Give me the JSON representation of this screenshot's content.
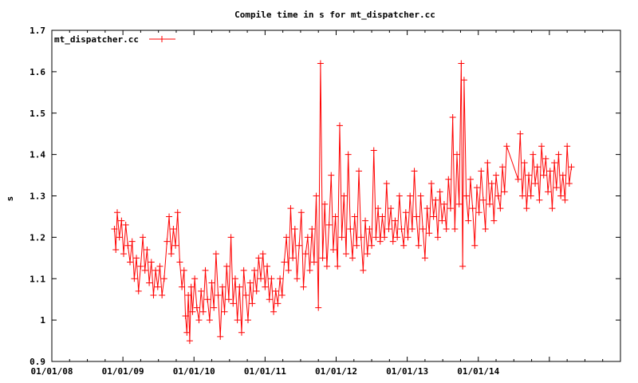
{
  "chart_data": {
    "type": "line",
    "title": "Compile time in s for mt_dispatcher.cc",
    "xlabel": "",
    "ylabel": "s",
    "xlim": [
      2008.0,
      2016.0
    ],
    "ylim": [
      0.9,
      1.7
    ],
    "x_ticks": [
      {
        "value": 2008,
        "label": "01/01/08"
      },
      {
        "value": 2009,
        "label": "01/01/09"
      },
      {
        "value": 2010,
        "label": "01/01/10"
      },
      {
        "value": 2011,
        "label": "01/01/11"
      },
      {
        "value": 2012,
        "label": "01/01/12"
      },
      {
        "value": 2013,
        "label": "01/01/13"
      },
      {
        "value": 2014,
        "label": "01/01/14"
      },
      {
        "value": 2015,
        "label": ""
      }
    ],
    "y_ticks": [
      {
        "value": 0.9,
        "label": "0.9"
      },
      {
        "value": 1.0,
        "label": "1"
      },
      {
        "value": 1.1,
        "label": "1.1"
      },
      {
        "value": 1.2,
        "label": "1.2"
      },
      {
        "value": 1.3,
        "label": "1.3"
      },
      {
        "value": 1.4,
        "label": "1.4"
      },
      {
        "value": 1.5,
        "label": "1.5"
      },
      {
        "value": 1.6,
        "label": "1.6"
      },
      {
        "value": 1.7,
        "label": "1.7"
      }
    ],
    "legend": {
      "position": "top-left",
      "entry": "mt_dispatcher.cc"
    },
    "grid": false,
    "series": [
      {
        "name": "mt_dispatcher.cc",
        "color": "#ff0000",
        "points": [
          [
            2008.88,
            1.22
          ],
          [
            2008.9,
            1.17
          ],
          [
            2008.92,
            1.26
          ],
          [
            2008.95,
            1.2
          ],
          [
            2008.98,
            1.24
          ],
          [
            2009.01,
            1.16
          ],
          [
            2009.04,
            1.23
          ],
          [
            2009.07,
            1.18
          ],
          [
            2009.1,
            1.14
          ],
          [
            2009.13,
            1.19
          ],
          [
            2009.16,
            1.1
          ],
          [
            2009.19,
            1.15
          ],
          [
            2009.22,
            1.07
          ],
          [
            2009.25,
            1.13
          ],
          [
            2009.28,
            1.2
          ],
          [
            2009.31,
            1.12
          ],
          [
            2009.34,
            1.17
          ],
          [
            2009.37,
            1.09
          ],
          [
            2009.4,
            1.14
          ],
          [
            2009.43,
            1.06
          ],
          [
            2009.46,
            1.12
          ],
          [
            2009.49,
            1.08
          ],
          [
            2009.52,
            1.13
          ],
          [
            2009.55,
            1.06
          ],
          [
            2009.58,
            1.1
          ],
          [
            2009.62,
            1.19
          ],
          [
            2009.65,
            1.25
          ],
          [
            2009.68,
            1.16
          ],
          [
            2009.71,
            1.22
          ],
          [
            2009.74,
            1.18
          ],
          [
            2009.77,
            1.26
          ],
          [
            2009.8,
            1.14
          ],
          [
            2009.83,
            1.08
          ],
          [
            2009.86,
            1.12
          ],
          [
            2009.88,
            1.01
          ],
          [
            2009.9,
            0.97
          ],
          [
            2009.92,
            1.06
          ],
          [
            2009.94,
            0.95
          ],
          [
            2009.96,
            1.08
          ],
          [
            2009.98,
            1.02
          ],
          [
            2010.01,
            1.1
          ],
          [
            2010.04,
            1.03
          ],
          [
            2010.07,
            1.0
          ],
          [
            2010.1,
            1.07
          ],
          [
            2010.13,
            1.02
          ],
          [
            2010.16,
            1.12
          ],
          [
            2010.19,
            1.05
          ],
          [
            2010.22,
            1.0
          ],
          [
            2010.25,
            1.09
          ],
          [
            2010.28,
            1.03
          ],
          [
            2010.31,
            1.16
          ],
          [
            2010.34,
            1.06
          ],
          [
            2010.37,
            0.96
          ],
          [
            2010.4,
            1.08
          ],
          [
            2010.43,
            1.02
          ],
          [
            2010.46,
            1.13
          ],
          [
            2010.49,
            1.05
          ],
          [
            2010.52,
            1.2
          ],
          [
            2010.55,
            1.04
          ],
          [
            2010.58,
            1.1
          ],
          [
            2010.61,
            1.0
          ],
          [
            2010.64,
            1.08
          ],
          [
            2010.67,
            0.97
          ],
          [
            2010.7,
            1.12
          ],
          [
            2010.73,
            1.06
          ],
          [
            2010.76,
            1.0
          ],
          [
            2010.79,
            1.09
          ],
          [
            2010.82,
            1.04
          ],
          [
            2010.85,
            1.12
          ],
          [
            2010.88,
            1.07
          ],
          [
            2010.91,
            1.15
          ],
          [
            2010.94,
            1.1
          ],
          [
            2010.97,
            1.16
          ],
          [
            2011.0,
            1.08
          ],
          [
            2011.03,
            1.13
          ],
          [
            2011.06,
            1.05
          ],
          [
            2011.09,
            1.1
          ],
          [
            2011.12,
            1.02
          ],
          [
            2011.15,
            1.07
          ],
          [
            2011.18,
            1.04
          ],
          [
            2011.21,
            1.1
          ],
          [
            2011.24,
            1.06
          ],
          [
            2011.27,
            1.14
          ],
          [
            2011.3,
            1.2
          ],
          [
            2011.33,
            1.12
          ],
          [
            2011.36,
            1.27
          ],
          [
            2011.39,
            1.15
          ],
          [
            2011.42,
            1.22
          ],
          [
            2011.45,
            1.1
          ],
          [
            2011.48,
            1.18
          ],
          [
            2011.51,
            1.26
          ],
          [
            2011.54,
            1.08
          ],
          [
            2011.57,
            1.16
          ],
          [
            2011.6,
            1.2
          ],
          [
            2011.63,
            1.12
          ],
          [
            2011.66,
            1.22
          ],
          [
            2011.69,
            1.14
          ],
          [
            2011.72,
            1.3
          ],
          [
            2011.75,
            1.03
          ],
          [
            2011.78,
            1.62
          ],
          [
            2011.81,
            1.15
          ],
          [
            2011.84,
            1.28
          ],
          [
            2011.87,
            1.13
          ],
          [
            2011.9,
            1.23
          ],
          [
            2011.93,
            1.35
          ],
          [
            2011.96,
            1.17
          ],
          [
            2011.99,
            1.25
          ],
          [
            2012.02,
            1.13
          ],
          [
            2012.05,
            1.47
          ],
          [
            2012.08,
            1.2
          ],
          [
            2012.11,
            1.3
          ],
          [
            2012.14,
            1.16
          ],
          [
            2012.17,
            1.4
          ],
          [
            2012.2,
            1.22
          ],
          [
            2012.23,
            1.15
          ],
          [
            2012.26,
            1.25
          ],
          [
            2012.29,
            1.18
          ],
          [
            2012.32,
            1.36
          ],
          [
            2012.35,
            1.2
          ],
          [
            2012.38,
            1.12
          ],
          [
            2012.41,
            1.24
          ],
          [
            2012.44,
            1.16
          ],
          [
            2012.47,
            1.22
          ],
          [
            2012.5,
            1.18
          ],
          [
            2012.53,
            1.41
          ],
          [
            2012.56,
            1.2
          ],
          [
            2012.59,
            1.27
          ],
          [
            2012.62,
            1.19
          ],
          [
            2012.65,
            1.25
          ],
          [
            2012.68,
            1.2
          ],
          [
            2012.71,
            1.33
          ],
          [
            2012.74,
            1.22
          ],
          [
            2012.77,
            1.27
          ],
          [
            2012.8,
            1.19
          ],
          [
            2012.83,
            1.24
          ],
          [
            2012.86,
            1.2
          ],
          [
            2012.89,
            1.3
          ],
          [
            2012.92,
            1.22
          ],
          [
            2012.95,
            1.18
          ],
          [
            2012.98,
            1.26
          ],
          [
            2013.01,
            1.2
          ],
          [
            2013.04,
            1.3
          ],
          [
            2013.07,
            1.22
          ],
          [
            2013.1,
            1.36
          ],
          [
            2013.13,
            1.25
          ],
          [
            2013.16,
            1.18
          ],
          [
            2013.19,
            1.3
          ],
          [
            2013.22,
            1.22
          ],
          [
            2013.25,
            1.15
          ],
          [
            2013.28,
            1.27
          ],
          [
            2013.31,
            1.21
          ],
          [
            2013.34,
            1.33
          ],
          [
            2013.37,
            1.25
          ],
          [
            2013.4,
            1.29
          ],
          [
            2013.43,
            1.2
          ],
          [
            2013.46,
            1.31
          ],
          [
            2013.49,
            1.24
          ],
          [
            2013.52,
            1.28
          ],
          [
            2013.55,
            1.22
          ],
          [
            2013.58,
            1.34
          ],
          [
            2013.61,
            1.27
          ],
          [
            2013.64,
            1.49
          ],
          [
            2013.67,
            1.22
          ],
          [
            2013.7,
            1.4
          ],
          [
            2013.73,
            1.28
          ],
          [
            2013.76,
            1.62
          ],
          [
            2013.78,
            1.13
          ],
          [
            2013.8,
            1.58
          ],
          [
            2013.83,
            1.3
          ],
          [
            2013.86,
            1.24
          ],
          [
            2013.89,
            1.34
          ],
          [
            2013.92,
            1.27
          ],
          [
            2013.95,
            1.18
          ],
          [
            2013.98,
            1.32
          ],
          [
            2014.01,
            1.26
          ],
          [
            2014.04,
            1.36
          ],
          [
            2014.07,
            1.29
          ],
          [
            2014.1,
            1.22
          ],
          [
            2014.13,
            1.38
          ],
          [
            2014.16,
            1.28
          ],
          [
            2014.19,
            1.33
          ],
          [
            2014.22,
            1.24
          ],
          [
            2014.25,
            1.35
          ],
          [
            2014.28,
            1.3
          ],
          [
            2014.31,
            1.27
          ],
          [
            2014.34,
            1.37
          ],
          [
            2014.37,
            1.31
          ],
          [
            2014.4,
            1.42
          ],
          [
            2014.56,
            1.34
          ],
          [
            2014.59,
            1.45
          ],
          [
            2014.62,
            1.3
          ],
          [
            2014.65,
            1.38
          ],
          [
            2014.68,
            1.27
          ],
          [
            2014.71,
            1.35
          ],
          [
            2014.74,
            1.3
          ],
          [
            2014.77,
            1.4
          ],
          [
            2014.8,
            1.33
          ],
          [
            2014.83,
            1.37
          ],
          [
            2014.86,
            1.29
          ],
          [
            2014.89,
            1.42
          ],
          [
            2014.92,
            1.35
          ],
          [
            2014.95,
            1.39
          ],
          [
            2014.98,
            1.31
          ],
          [
            2015.01,
            1.36
          ],
          [
            2015.04,
            1.27
          ],
          [
            2015.07,
            1.38
          ],
          [
            2015.1,
            1.32
          ],
          [
            2015.13,
            1.4
          ],
          [
            2015.16,
            1.3
          ],
          [
            2015.19,
            1.35
          ],
          [
            2015.22,
            1.29
          ],
          [
            2015.25,
            1.42
          ],
          [
            2015.28,
            1.33
          ],
          [
            2015.31,
            1.37
          ]
        ]
      }
    ]
  }
}
